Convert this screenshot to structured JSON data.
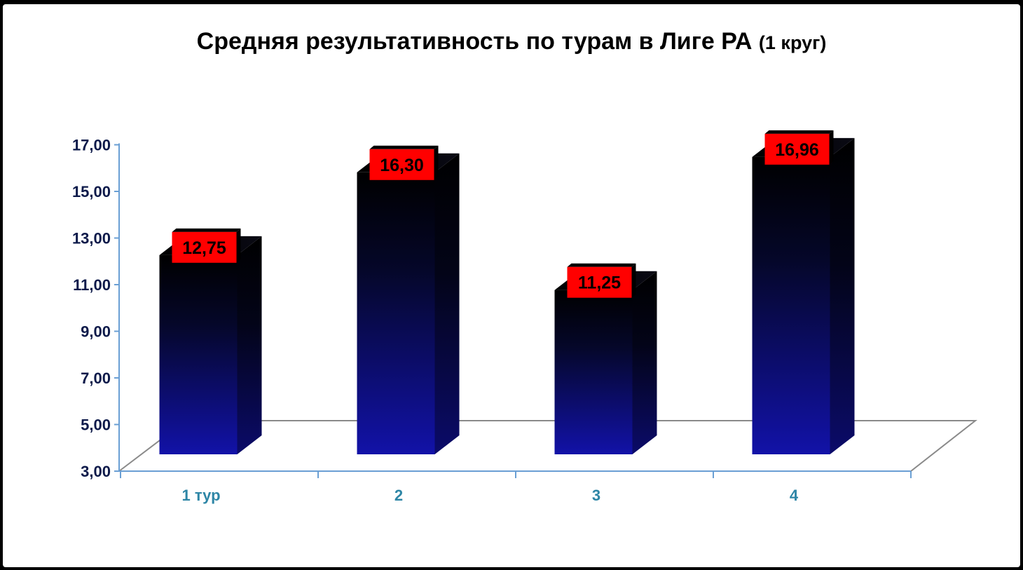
{
  "chart_data": {
    "type": "bar",
    "title": "Средняя результативность по турам в Лиге РА",
    "subtitle": "(1 круг)",
    "categories": [
      "1 тур",
      "2",
      "3",
      "4"
    ],
    "values": [
      12.75,
      16.3,
      11.25,
      16.96
    ],
    "data_labels": [
      "12,75",
      "16,30",
      "11,25",
      "16,96"
    ],
    "ylim": [
      3,
      17
    ],
    "yticks": [
      3,
      5,
      7,
      9,
      11,
      13,
      15,
      17
    ],
    "ytick_labels": [
      "3,00",
      "5,00",
      "7,00",
      "9,00",
      "11,00",
      "13,00",
      "15,00",
      "17,00"
    ],
    "xlabel": "",
    "ylabel": "",
    "grid": false,
    "legend": "none",
    "style": "3d",
    "colors": {
      "bar_top": "#000000",
      "bar_bottom": "#1a1aa8",
      "label_bg": "#ff0000",
      "axis": "#6a9fd4",
      "floor": "#8a8a8a",
      "xtick_text": "#2e86a6",
      "ytick_text": "#0d1a4a"
    }
  }
}
